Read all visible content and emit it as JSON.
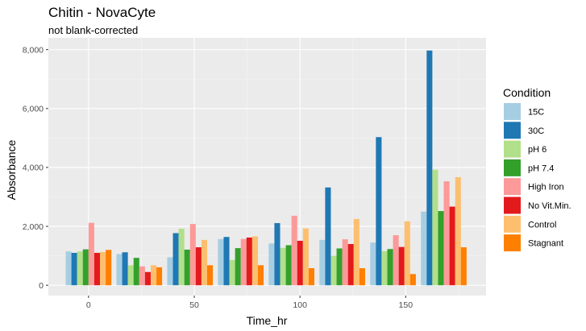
{
  "chart_data": {
    "type": "bar",
    "title": "Chitin - NovaCyte",
    "subtitle": "not blank-corrected",
    "xlabel": "Time_hr",
    "ylabel": "Absorbance",
    "xlim": [
      -19,
      188
    ],
    "ylim": [
      -350,
      8400
    ],
    "x_ticks": [
      0,
      50,
      100,
      150
    ],
    "y_ticks": [
      0,
      2000,
      4000,
      6000,
      8000
    ],
    "y_tick_labels": [
      "0",
      "2,000",
      "4,000",
      "6,000",
      "8,000"
    ],
    "x_tick_labels": [
      "0",
      "50",
      "100",
      "150"
    ],
    "legend_title": "Condition",
    "legend_position": "right",
    "grid": true,
    "x": [
      0,
      24,
      48,
      72,
      96,
      120,
      144,
      168
    ],
    "series": [
      {
        "name": "15C",
        "color": "#a6cee3",
        "values": [
          1150,
          1060,
          950,
          1570,
          1420,
          1540,
          1450,
          2500
        ]
      },
      {
        "name": "30C",
        "color": "#1f78b4",
        "values": [
          1100,
          1120,
          1770,
          1640,
          2110,
          3320,
          5030,
          7970
        ]
      },
      {
        "name": "pH 6",
        "color": "#b2df8a",
        "values": [
          1150,
          680,
          1920,
          860,
          1270,
          1000,
          1160,
          3920
        ]
      },
      {
        "name": "pH 7.4",
        "color": "#33a02c",
        "values": [
          1220,
          930,
          1210,
          1260,
          1360,
          1250,
          1230,
          2520
        ]
      },
      {
        "name": "High Iron",
        "color": "#fb9a99",
        "values": [
          2120,
          640,
          2080,
          1570,
          2360,
          1560,
          1700,
          3530
        ]
      },
      {
        "name": "No Vit.Min.",
        "color": "#e31a1c",
        "values": [
          1100,
          450,
          1290,
          1620,
          1510,
          1400,
          1300,
          2670
        ]
      },
      {
        "name": "Control",
        "color": "#fdbf6f",
        "values": [
          1130,
          680,
          1540,
          1660,
          1930,
          2250,
          2170,
          3670
        ]
      },
      {
        "name": "Stagnant",
        "color": "#ff7f00",
        "values": [
          1200,
          610,
          680,
          680,
          580,
          580,
          380,
          1290
        ]
      }
    ]
  }
}
